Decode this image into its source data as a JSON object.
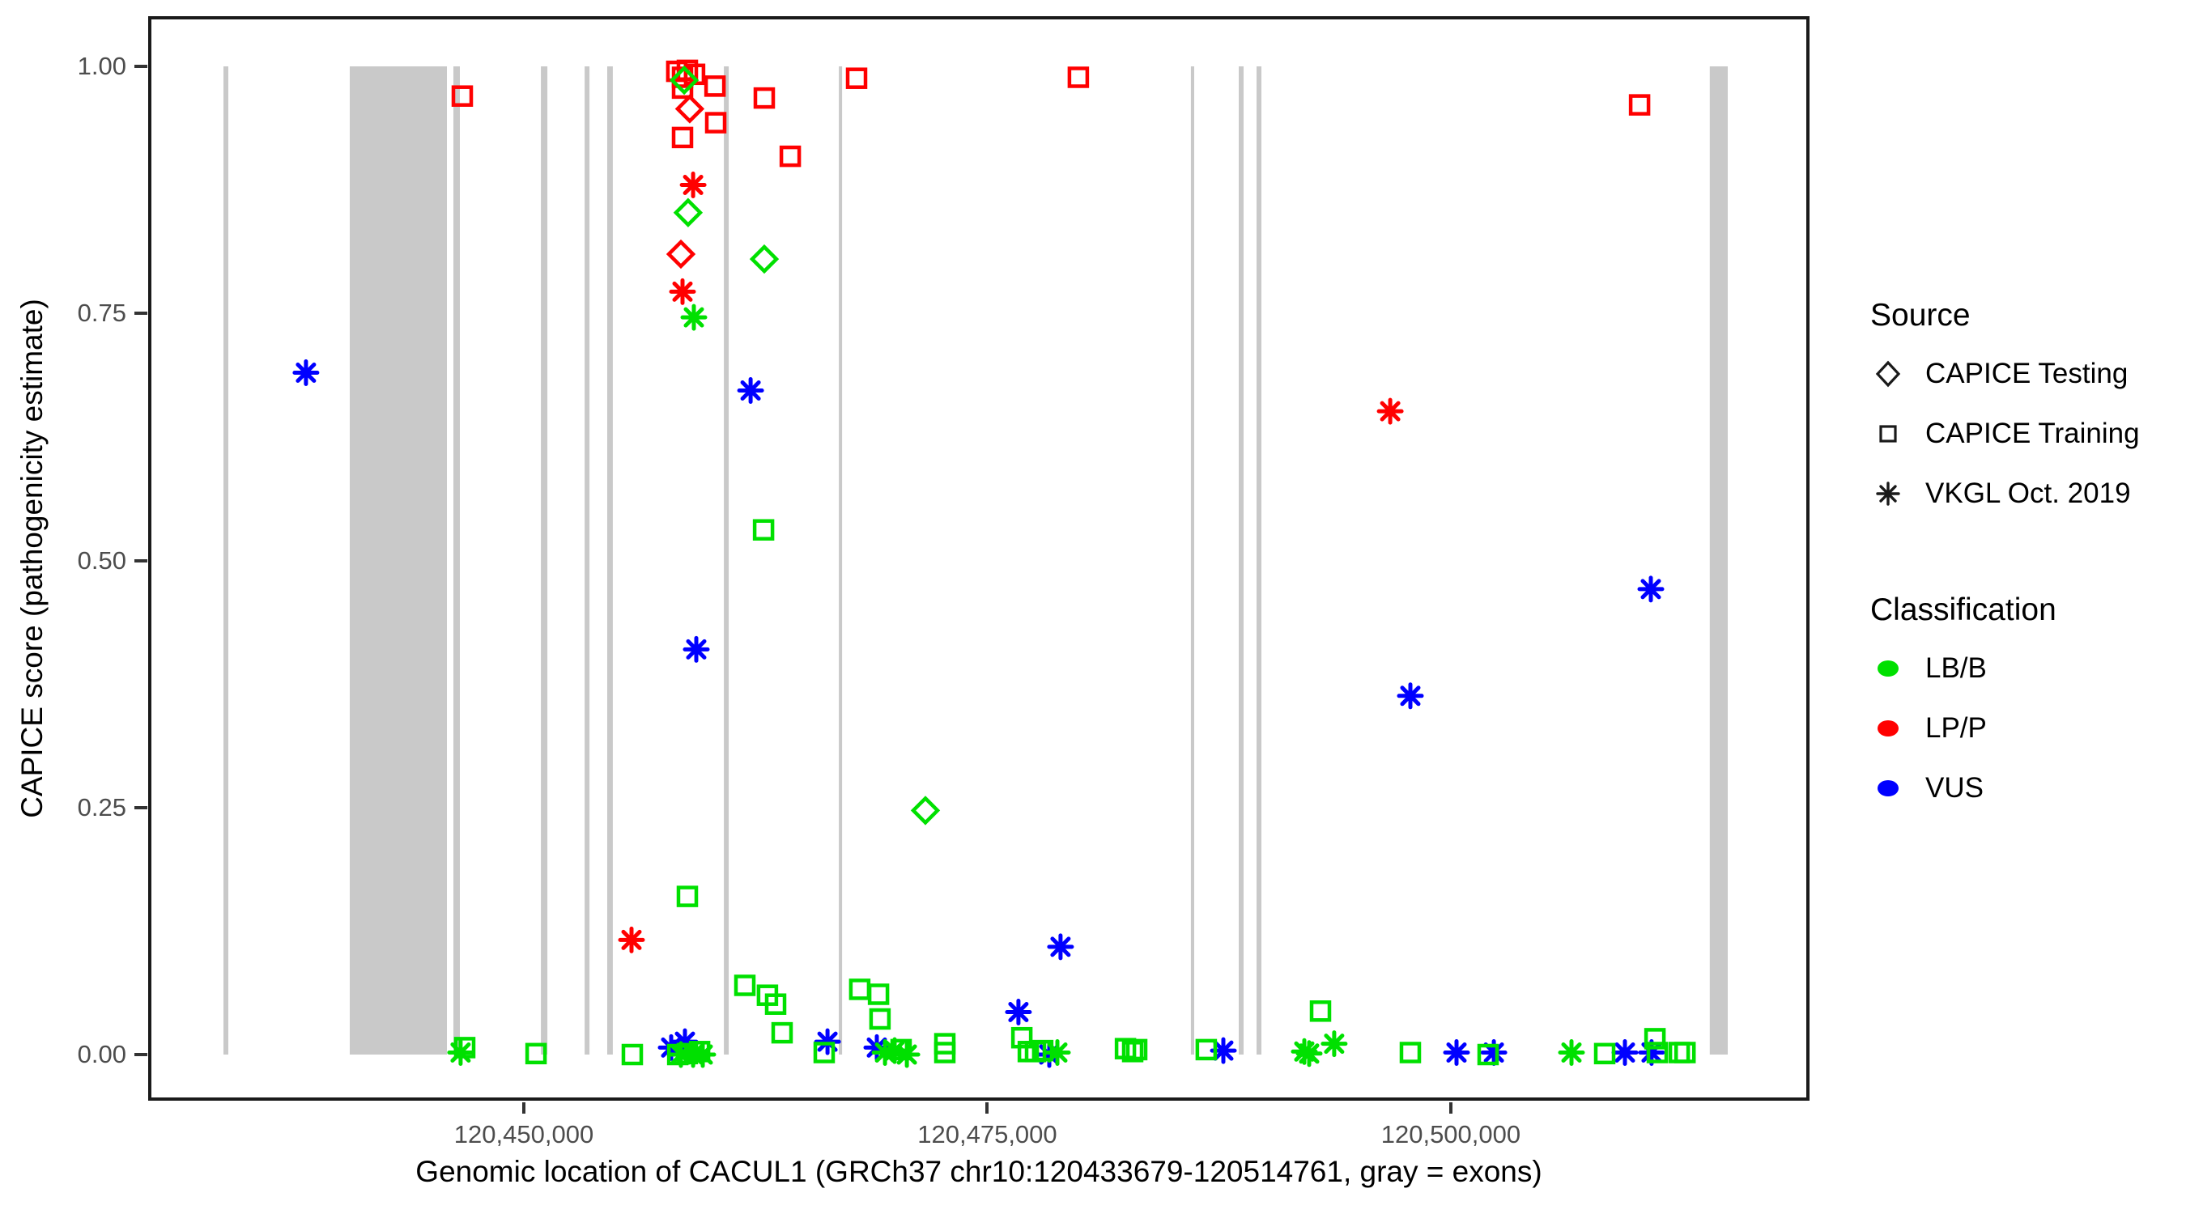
{
  "legend": {
    "source_title": "Source",
    "source_items": [
      {
        "label": "CAPICE Testing",
        "shape": "diamond"
      },
      {
        "label": "CAPICE Training",
        "shape": "square"
      },
      {
        "label": "VKGL Oct. 2019",
        "shape": "asterisk"
      }
    ],
    "classification_title": "Classification",
    "classification_items": [
      {
        "label": "LB/B",
        "color": "#00e000"
      },
      {
        "label": "LP/P",
        "color": "#ff0000"
      },
      {
        "label": "VUS",
        "color": "#0000ff"
      }
    ]
  },
  "chart_data": {
    "type": "scatter",
    "title": "",
    "xlabel": "Genomic location of CACUL1 (GRCh37 chr10:120433679-120514761, gray = exons)",
    "ylabel": "CAPICE score (pathogenicity estimate)",
    "grid": false,
    "legend_position": "right",
    "x_domain": [
      120429737,
      120519348
    ],
    "y_domain": [
      -0.0467,
      1.0508
    ],
    "x_ticks": [
      {
        "bp": 120450000,
        "label": "120,450,000"
      },
      {
        "bp": 120475000,
        "label": "120,475,000"
      },
      {
        "bp": 120500000,
        "label": "120,500,000"
      }
    ],
    "y_ticks": [
      {
        "score": 0.0,
        "label": "0.00"
      },
      {
        "score": 0.25,
        "label": "0.25"
      },
      {
        "score": 0.5,
        "label": "0.50"
      },
      {
        "score": 0.75,
        "label": "0.75"
      },
      {
        "score": 1.0,
        "label": "1.00"
      }
    ],
    "exon_color": "#c9c9c9",
    "exons_bp": [
      [
        120433800,
        120434060
      ],
      [
        120440610,
        120445850
      ],
      [
        120446200,
        120446550
      ],
      [
        120450920,
        120451270
      ],
      [
        120453280,
        120453540
      ],
      [
        120454500,
        120454800
      ],
      [
        120460790,
        120461050
      ],
      [
        120466990,
        120467160
      ],
      [
        120485980,
        120486160
      ],
      [
        120488560,
        120488820
      ],
      [
        120489520,
        120489780
      ],
      [
        120513970,
        120514940
      ]
    ],
    "shape_by_source": {
      "CAPICE Testing": "diamond",
      "CAPICE Training": "square",
      "VKGL Oct. 2019": "asterisk"
    },
    "color_by_class": {
      "LB/B": "#00e000",
      "LP/P": "#ff0000",
      "VUS": "#0000ff"
    },
    "points": [
      {
        "bp": 120446680,
        "score": 0.97,
        "source": "CAPICE Training",
        "class": "LP/P"
      },
      {
        "bp": 120458250,
        "score": 0.995,
        "source": "CAPICE Training",
        "class": "LP/P"
      },
      {
        "bp": 120458820,
        "score": 0.996,
        "source": "CAPICE Training",
        "class": "LP/P"
      },
      {
        "bp": 120459210,
        "score": 0.992,
        "source": "CAPICE Training",
        "class": "LP/P"
      },
      {
        "bp": 120458560,
        "score": 0.989,
        "source": "CAPICE Training",
        "class": "LP/P"
      },
      {
        "bp": 120458560,
        "score": 0.978,
        "source": "CAPICE Training",
        "class": "LP/P"
      },
      {
        "bp": 120460310,
        "score": 0.98,
        "source": "CAPICE Training",
        "class": "LP/P"
      },
      {
        "bp": 120462970,
        "score": 0.968,
        "source": "CAPICE Training",
        "class": "LP/P"
      },
      {
        "bp": 120460350,
        "score": 0.943,
        "source": "CAPICE Training",
        "class": "LP/P"
      },
      {
        "bp": 120458560,
        "score": 0.928,
        "source": "CAPICE Training",
        "class": "LP/P"
      },
      {
        "bp": 120464370,
        "score": 0.909,
        "source": "CAPICE Training",
        "class": "LP/P"
      },
      {
        "bp": 120467950,
        "score": 0.988,
        "source": "CAPICE Training",
        "class": "LP/P"
      },
      {
        "bp": 120479910,
        "score": 0.989,
        "source": "CAPICE Training",
        "class": "LP/P"
      },
      {
        "bp": 120510180,
        "score": 0.961,
        "source": "CAPICE Training",
        "class": "LP/P"
      },
      {
        "bp": 120458650,
        "score": 0.986,
        "source": "CAPICE Testing",
        "class": "LB/B"
      },
      {
        "bp": 120458860,
        "score": 0.852,
        "source": "CAPICE Testing",
        "class": "LB/B"
      },
      {
        "bp": 120462970,
        "score": 0.805,
        "source": "CAPICE Testing",
        "class": "LB/B"
      },
      {
        "bp": 120471660,
        "score": 0.247,
        "source": "CAPICE Testing",
        "class": "LB/B"
      },
      {
        "bp": 120458950,
        "score": 0.957,
        "source": "CAPICE Testing",
        "class": "LP/P"
      },
      {
        "bp": 120458470,
        "score": 0.81,
        "source": "CAPICE Testing",
        "class": "LP/P"
      },
      {
        "bp": 120459130,
        "score": 0.88,
        "source": "VKGL Oct. 2019",
        "class": "LP/P"
      },
      {
        "bp": 120458560,
        "score": 0.772,
        "source": "VKGL Oct. 2019",
        "class": "LP/P"
      },
      {
        "bp": 120455810,
        "score": 0.116,
        "source": "VKGL Oct. 2019",
        "class": "LP/P"
      },
      {
        "bp": 120496730,
        "score": 0.651,
        "source": "VKGL Oct. 2019",
        "class": "LP/P"
      },
      {
        "bp": 120459170,
        "score": 0.746,
        "source": "VKGL Oct. 2019",
        "class": "LB/B"
      },
      {
        "bp": 120438250,
        "score": 0.69,
        "source": "VKGL Oct. 2019",
        "class": "VUS"
      },
      {
        "bp": 120462230,
        "score": 0.672,
        "source": "VKGL Oct. 2019",
        "class": "VUS"
      },
      {
        "bp": 120459300,
        "score": 0.41,
        "source": "VKGL Oct. 2019",
        "class": "VUS"
      },
      {
        "bp": 120497820,
        "score": 0.363,
        "source": "VKGL Oct. 2019",
        "class": "VUS"
      },
      {
        "bp": 120510790,
        "score": 0.471,
        "source": "VKGL Oct. 2019",
        "class": "VUS"
      },
      {
        "bp": 120478950,
        "score": 0.109,
        "source": "VKGL Oct. 2019",
        "class": "VUS"
      },
      {
        "bp": 120476680,
        "score": 0.043,
        "source": "VKGL Oct. 2019",
        "class": "VUS"
      },
      {
        "bp": 120457950,
        "score": 0.007,
        "source": "VKGL Oct. 2019",
        "class": "VUS"
      },
      {
        "bp": 120458690,
        "score": 0.013,
        "source": "VKGL Oct. 2019",
        "class": "VUS"
      },
      {
        "bp": 120466380,
        "score": 0.013,
        "source": "VKGL Oct. 2019",
        "class": "VUS"
      },
      {
        "bp": 120469040,
        "score": 0.007,
        "source": "VKGL Oct. 2019",
        "class": "VUS"
      },
      {
        "bp": 120478340,
        "score": 0.0,
        "source": "VKGL Oct. 2019",
        "class": "VUS"
      },
      {
        "bp": 120487730,
        "score": 0.004,
        "source": "VKGL Oct. 2019",
        "class": "VUS"
      },
      {
        "bp": 120500310,
        "score": 0.002,
        "source": "VKGL Oct. 2019",
        "class": "VUS"
      },
      {
        "bp": 120502320,
        "score": 0.002,
        "source": "VKGL Oct. 2019",
        "class": "VUS"
      },
      {
        "bp": 120509390,
        "score": 0.002,
        "source": "VKGL Oct. 2019",
        "class": "VUS"
      },
      {
        "bp": 120510830,
        "score": 0.002,
        "source": "VKGL Oct. 2019",
        "class": "VUS"
      },
      {
        "bp": 120462930,
        "score": 0.531,
        "source": "CAPICE Training",
        "class": "LB/B"
      },
      {
        "bp": 120458820,
        "score": 0.16,
        "source": "CAPICE Training",
        "class": "LB/B"
      },
      {
        "bp": 120461920,
        "score": 0.07,
        "source": "CAPICE Training",
        "class": "LB/B"
      },
      {
        "bp": 120463140,
        "score": 0.06,
        "source": "CAPICE Training",
        "class": "LB/B"
      },
      {
        "bp": 120463580,
        "score": 0.051,
        "source": "CAPICE Training",
        "class": "LB/B"
      },
      {
        "bp": 120463930,
        "score": 0.022,
        "source": "CAPICE Training",
        "class": "LB/B"
      },
      {
        "bp": 120446810,
        "score": 0.007,
        "source": "CAPICE Training",
        "class": "LB/B"
      },
      {
        "bp": 120450660,
        "score": 0.001,
        "source": "CAPICE Training",
        "class": "LB/B"
      },
      {
        "bp": 120455850,
        "score": 0.0,
        "source": "CAPICE Training",
        "class": "LB/B"
      },
      {
        "bp": 120458300,
        "score": 0.0,
        "source": "CAPICE Training",
        "class": "LB/B"
      },
      {
        "bp": 120458820,
        "score": 0.001,
        "source": "CAPICE Training",
        "class": "LB/B"
      },
      {
        "bp": 120459480,
        "score": 0.003,
        "source": "CAPICE Training",
        "class": "LB/B"
      },
      {
        "bp": 120466200,
        "score": 0.002,
        "source": "CAPICE Training",
        "class": "LB/B"
      },
      {
        "bp": 120468120,
        "score": 0.066,
        "source": "CAPICE Training",
        "class": "LB/B"
      },
      {
        "bp": 120469130,
        "score": 0.061,
        "source": "CAPICE Training",
        "class": "LB/B"
      },
      {
        "bp": 120469210,
        "score": 0.036,
        "source": "CAPICE Training",
        "class": "LB/B"
      },
      {
        "bp": 120470350,
        "score": 0.005,
        "source": "CAPICE Training",
        "class": "LB/B"
      },
      {
        "bp": 120472710,
        "score": 0.011,
        "source": "CAPICE Training",
        "class": "LB/B"
      },
      {
        "bp": 120472710,
        "score": 0.002,
        "source": "CAPICE Training",
        "class": "LB/B"
      },
      {
        "bp": 120476860,
        "score": 0.017,
        "source": "CAPICE Training",
        "class": "LB/B"
      },
      {
        "bp": 120477210,
        "score": 0.003,
        "source": "CAPICE Training",
        "class": "LB/B"
      },
      {
        "bp": 120477600,
        "score": 0.003,
        "source": "CAPICE Training",
        "class": "LB/B"
      },
      {
        "bp": 120477990,
        "score": 0.004,
        "source": "CAPICE Training",
        "class": "LB/B"
      },
      {
        "bp": 120482450,
        "score": 0.006,
        "source": "CAPICE Training",
        "class": "LB/B"
      },
      {
        "bp": 120482840,
        "score": 0.003,
        "source": "CAPICE Training",
        "class": "LB/B"
      },
      {
        "bp": 120483060,
        "score": 0.005,
        "source": "CAPICE Training",
        "class": "LB/B"
      },
      {
        "bp": 120486810,
        "score": 0.005,
        "source": "CAPICE Training",
        "class": "LB/B"
      },
      {
        "bp": 120492970,
        "score": 0.044,
        "source": "CAPICE Training",
        "class": "LB/B"
      },
      {
        "bp": 120497820,
        "score": 0.002,
        "source": "CAPICE Training",
        "class": "LB/B"
      },
      {
        "bp": 120502010,
        "score": 0.0,
        "source": "CAPICE Training",
        "class": "LB/B"
      },
      {
        "bp": 120508300,
        "score": 0.001,
        "source": "CAPICE Training",
        "class": "LB/B"
      },
      {
        "bp": 120511010,
        "score": 0.016,
        "source": "CAPICE Training",
        "class": "LB/B"
      },
      {
        "bp": 120511140,
        "score": 0.002,
        "source": "CAPICE Training",
        "class": "LB/B"
      },
      {
        "bp": 120512320,
        "score": 0.002,
        "source": "CAPICE Training",
        "class": "LB/B"
      },
      {
        "bp": 120512630,
        "score": 0.002,
        "source": "CAPICE Training",
        "class": "LB/B"
      },
      {
        "bp": 120446590,
        "score": 0.002,
        "source": "VKGL Oct. 2019",
        "class": "LB/B"
      },
      {
        "bp": 120458470,
        "score": 0.0,
        "source": "VKGL Oct. 2019",
        "class": "LB/B"
      },
      {
        "bp": 120459130,
        "score": 0.0,
        "source": "VKGL Oct. 2019",
        "class": "LB/B"
      },
      {
        "bp": 120459650,
        "score": 0.0,
        "source": "VKGL Oct. 2019",
        "class": "LB/B"
      },
      {
        "bp": 120469480,
        "score": 0.002,
        "source": "VKGL Oct. 2019",
        "class": "LB/B"
      },
      {
        "bp": 120470000,
        "score": 0.004,
        "source": "VKGL Oct. 2019",
        "class": "LB/B"
      },
      {
        "bp": 120470660,
        "score": 0.0,
        "source": "VKGL Oct. 2019",
        "class": "LB/B"
      },
      {
        "bp": 120478780,
        "score": 0.002,
        "source": "VKGL Oct. 2019",
        "class": "LB/B"
      },
      {
        "bp": 120492100,
        "score": 0.003,
        "source": "VKGL Oct. 2019",
        "class": "LB/B"
      },
      {
        "bp": 120492360,
        "score": 0.001,
        "source": "VKGL Oct. 2019",
        "class": "LB/B"
      },
      {
        "bp": 120493710,
        "score": 0.011,
        "source": "VKGL Oct. 2019",
        "class": "LB/B"
      },
      {
        "bp": 120506510,
        "score": 0.002,
        "source": "VKGL Oct. 2019",
        "class": "LB/B"
      }
    ]
  }
}
